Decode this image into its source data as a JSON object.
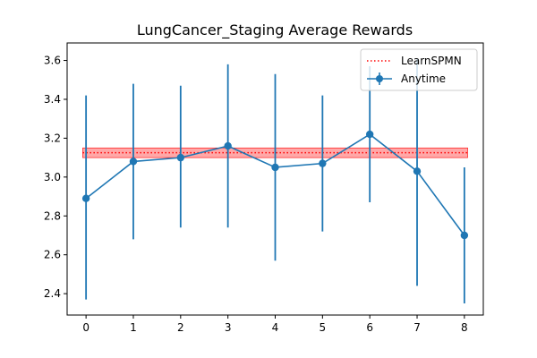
{
  "chart_data": {
    "type": "line",
    "title": "LungCancer_Staging Average Rewards",
    "xlabel": "",
    "ylabel": "",
    "x": [
      0,
      1,
      2,
      3,
      4,
      5,
      6,
      7,
      8
    ],
    "xlim": [
      -0.4,
      8.4
    ],
    "ylim": [
      2.29,
      3.69
    ],
    "x_ticks": [
      0,
      1,
      2,
      3,
      4,
      5,
      6,
      7,
      8
    ],
    "y_ticks": [
      2.4,
      2.6,
      2.8,
      3.0,
      3.2,
      3.4,
      3.6
    ],
    "y_tick_labels": [
      "2.4",
      "2.6",
      "2.8",
      "3.0",
      "3.2",
      "3.4",
      "3.6"
    ],
    "grid": false,
    "legend_position": "top-right",
    "series": [
      {
        "name": "Anytime",
        "style": "line-markers-errorbars",
        "color": "#1f77b4",
        "values": [
          2.89,
          3.08,
          3.1,
          3.16,
          3.05,
          3.07,
          3.22,
          3.03,
          2.7
        ],
        "error_low": [
          2.37,
          2.68,
          2.74,
          2.74,
          2.57,
          2.72,
          2.87,
          2.44,
          2.35
        ],
        "error_high": [
          3.42,
          3.48,
          3.47,
          3.58,
          3.53,
          3.42,
          3.57,
          3.61,
          3.05
        ]
      },
      {
        "name": "LearnSPMN",
        "style": "dotted-horizontal-with-band",
        "color": "#ff0000",
        "band_color": "#ff9999",
        "value": 3.125,
        "band_low": 3.1,
        "band_high": 3.15
      }
    ]
  }
}
